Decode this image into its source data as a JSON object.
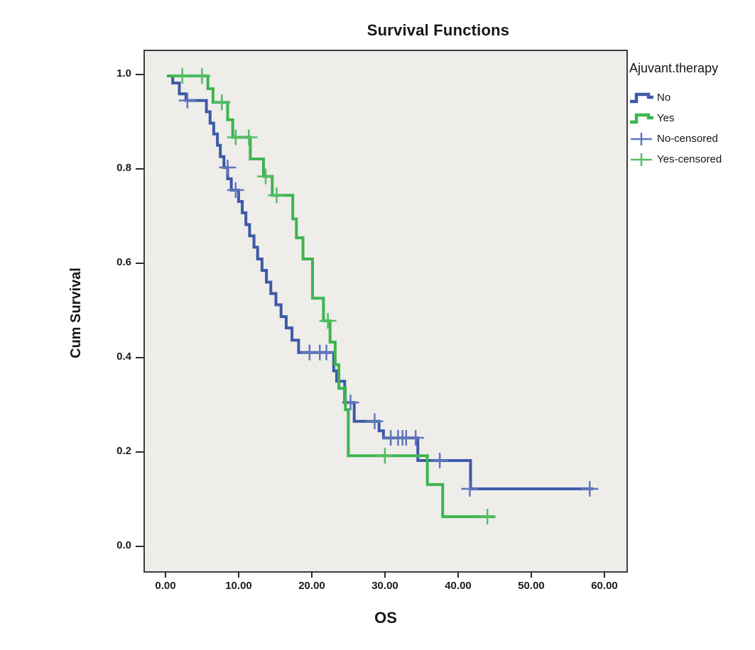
{
  "chart_data": {
    "type": "line",
    "subtype": "kaplan-meier-step",
    "title": "Survival Functions",
    "xlabel": "OS",
    "ylabel": "Cum Survival",
    "legend_title": "Ajuvant.therapy",
    "legend_position": "right",
    "grid": false,
    "plot_bg_color": "#eeedea",
    "frame_color": "#3e3e3e",
    "xlim": [
      0,
      60
    ],
    "ylim": [
      0.0,
      1.0
    ],
    "x_axis": {
      "tick_values": [
        0,
        10,
        20,
        30,
        40,
        50,
        60
      ],
      "tick_labels": [
        "0.00",
        "10.00",
        "20.00",
        "30.00",
        "40.00",
        "50.00",
        "60.00"
      ]
    },
    "y_axis": {
      "tick_values": [
        1.0,
        0.8,
        0.6,
        0.4,
        0.2,
        0.0
      ],
      "tick_labels": [
        "1.0",
        "0.8",
        "0.6",
        "0.4",
        "0.2",
        "0.0"
      ]
    },
    "series": [
      {
        "name": "No",
        "color": "#3d59a8",
        "censor_color": "#6077bc",
        "end_x": 58.3,
        "points": [
          [
            0,
            1.0
          ],
          [
            0.8,
            0.985
          ],
          [
            1.7,
            0.962
          ],
          [
            2.6,
            0.948
          ],
          [
            5.4,
            0.924
          ],
          [
            5.9,
            0.9
          ],
          [
            6.4,
            0.877
          ],
          [
            6.9,
            0.853
          ],
          [
            7.3,
            0.829
          ],
          [
            7.8,
            0.806
          ],
          [
            8.3,
            0.782
          ],
          [
            8.8,
            0.758
          ],
          [
            9.8,
            0.734
          ],
          [
            10.3,
            0.71
          ],
          [
            10.8,
            0.685
          ],
          [
            11.3,
            0.661
          ],
          [
            11.9,
            0.637
          ],
          [
            12.4,
            0.612
          ],
          [
            13.0,
            0.588
          ],
          [
            13.6,
            0.563
          ],
          [
            14.2,
            0.539
          ],
          [
            14.9,
            0.515
          ],
          [
            15.6,
            0.49
          ],
          [
            16.3,
            0.466
          ],
          [
            17.1,
            0.44
          ],
          [
            18.0,
            0.414
          ],
          [
            22.8,
            0.375
          ],
          [
            23.2,
            0.353
          ],
          [
            24.3,
            0.308
          ],
          [
            25.6,
            0.268
          ],
          [
            29.0,
            0.248
          ],
          [
            29.6,
            0.233
          ],
          [
            34.3,
            0.185
          ],
          [
            41.5,
            0.125
          ]
        ],
        "censored": [
          [
            2.8,
            0.948
          ],
          [
            8.3,
            0.806
          ],
          [
            9.4,
            0.758
          ],
          [
            19.5,
            0.414
          ],
          [
            20.9,
            0.414
          ],
          [
            21.8,
            0.414
          ],
          [
            25.1,
            0.308
          ],
          [
            28.4,
            0.268
          ],
          [
            30.6,
            0.233
          ],
          [
            31.6,
            0.233
          ],
          [
            32.2,
            0.233
          ],
          [
            32.7,
            0.233
          ],
          [
            34.0,
            0.233
          ],
          [
            37.3,
            0.185
          ],
          [
            41.4,
            0.125
          ],
          [
            57.8,
            0.125
          ]
        ]
      },
      {
        "name": "Yes",
        "color": "#3db54f",
        "censor_color": "#53bd63",
        "end_x": 44.8,
        "points": [
          [
            0,
            1.0
          ],
          [
            5.6,
            0.973
          ],
          [
            6.3,
            0.944
          ],
          [
            8.3,
            0.907
          ],
          [
            9.0,
            0.87
          ],
          [
            11.4,
            0.824
          ],
          [
            13.2,
            0.787
          ],
          [
            14.4,
            0.747
          ],
          [
            17.2,
            0.697
          ],
          [
            17.7,
            0.657
          ],
          [
            18.6,
            0.612
          ],
          [
            19.9,
            0.529
          ],
          [
            21.4,
            0.481
          ],
          [
            22.3,
            0.436
          ],
          [
            23.0,
            0.388
          ],
          [
            23.5,
            0.338
          ],
          [
            24.4,
            0.293
          ],
          [
            24.8,
            0.195
          ],
          [
            35.6,
            0.134
          ],
          [
            37.7,
            0.066
          ]
        ],
        "censored": [
          [
            2.1,
            1.0
          ],
          [
            4.8,
            1.0
          ],
          [
            7.5,
            0.944
          ],
          [
            9.4,
            0.87
          ],
          [
            11.2,
            0.87
          ],
          [
            13.5,
            0.787
          ],
          [
            15.0,
            0.747
          ],
          [
            22.0,
            0.481
          ],
          [
            29.8,
            0.195
          ],
          [
            43.8,
            0.066
          ]
        ]
      }
    ],
    "legend_entries": [
      {
        "label": "No",
        "glyph": "step",
        "color": "#3d59a8"
      },
      {
        "label": "Yes",
        "glyph": "step",
        "color": "#3db54f"
      },
      {
        "label": "No-censored",
        "glyph": "plus",
        "color": "#6077bc"
      },
      {
        "label": "Yes-censored",
        "glyph": "plus",
        "color": "#53bd63"
      }
    ]
  },
  "layout_values": {
    "note": "Kaplan-Meier survival plot, SPSS style"
  }
}
